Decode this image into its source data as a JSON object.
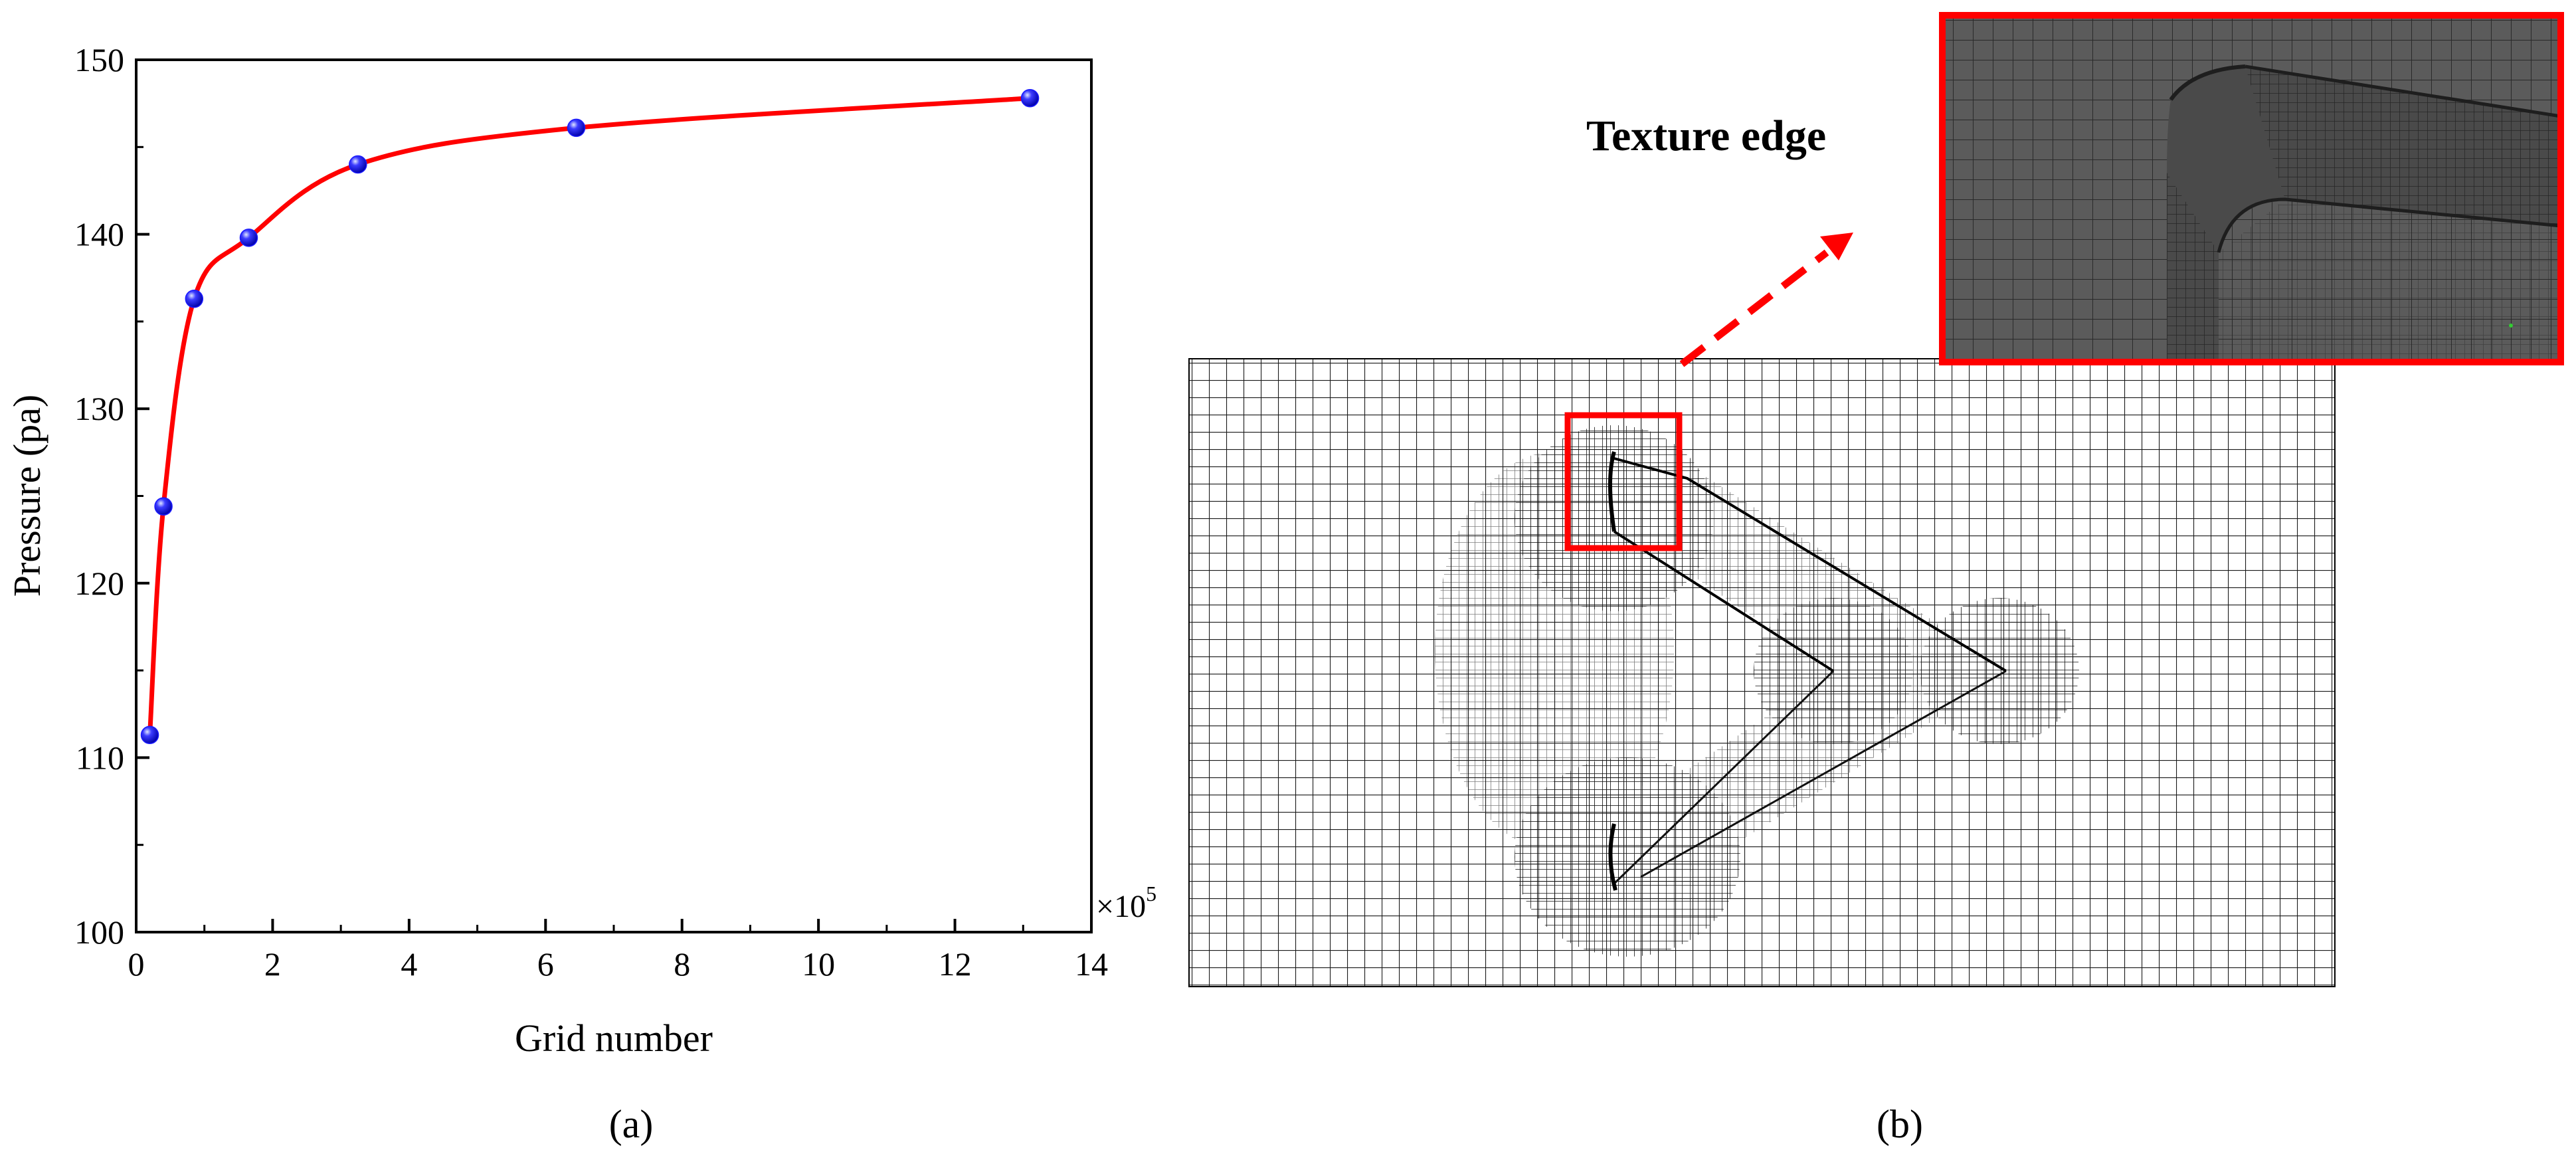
{
  "chart_data": {
    "type": "line",
    "xlabel": "Grid number",
    "ylabel": "Pressure (pa)",
    "x_multiplier": "×10",
    "x_multiplier_exp": "5",
    "xlim": [
      0,
      14
    ],
    "ylim": [
      100,
      150
    ],
    "xticks": [
      0,
      2,
      4,
      6,
      8,
      10,
      12,
      14
    ],
    "yticks": [
      100,
      110,
      120,
      130,
      140,
      150
    ],
    "grid": false,
    "legend": "none",
    "series": [
      {
        "x": [
          0.2,
          0.4,
          0.85,
          1.65,
          3.25,
          6.45,
          13.1
        ],
        "y": [
          111.3,
          124.4,
          136.3,
          139.8,
          144.0,
          146.1,
          147.8
        ],
        "line_color": "#ff0000",
        "marker_color": "#1a1aff"
      }
    ]
  },
  "panel_a": {
    "label": "(a)"
  },
  "panel_b": {
    "label": "(b)",
    "zoom_annotation": "Texture edge",
    "highlight_color": "#ff0000",
    "mesh_line_color": "#000000",
    "zoom_background": "#5b5b5b"
  }
}
